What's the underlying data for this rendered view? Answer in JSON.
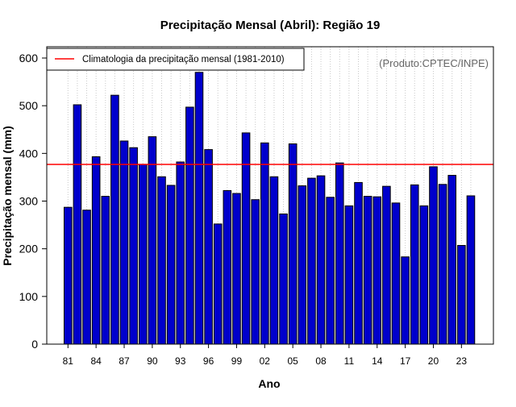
{
  "chart_data": {
    "type": "bar",
    "title": "Precipitação Mensal (Abril): Região 19",
    "xlabel": "Ano",
    "ylabel": "Precipitação mensal (mm)",
    "ylim": [
      0,
      600
    ],
    "yticks": [
      0,
      100,
      200,
      300,
      400,
      500,
      600
    ],
    "categories": [
      "1981",
      "1982",
      "1983",
      "1984",
      "1985",
      "1986",
      "1987",
      "1988",
      "1989",
      "1990",
      "1991",
      "1992",
      "1993",
      "1994",
      "1995",
      "1996",
      "1997",
      "1998",
      "1999",
      "2000",
      "2001",
      "2002",
      "2003",
      "2004",
      "2005",
      "2006",
      "2007",
      "2008",
      "2009",
      "2010",
      "2011",
      "2012",
      "2013",
      "2014",
      "2015",
      "2016",
      "2017",
      "2018",
      "2019",
      "2020",
      "2021",
      "2022",
      "2023",
      "2024"
    ],
    "xtick_labels": [
      "81",
      "84",
      "87",
      "90",
      "93",
      "96",
      "99",
      "02",
      "05",
      "08",
      "11",
      "14",
      "17",
      "20",
      "23"
    ],
    "values": [
      287,
      502,
      281,
      393,
      310,
      522,
      426,
      412,
      377,
      435,
      351,
      333,
      382,
      497,
      570,
      408,
      252,
      322,
      316,
      443,
      303,
      422,
      351,
      273,
      420,
      332,
      348,
      353,
      308,
      380,
      290,
      339,
      310,
      309,
      331,
      296,
      183,
      334,
      290,
      372,
      335,
      354,
      207,
      311
    ],
    "bar_color": "#0000cc",
    "reference_line": {
      "value": 377,
      "color": "#ff0000",
      "label": "Climatologia da precipitação mensal (1981-2010)"
    },
    "legend_position": "top-left",
    "grid": "vertical dotted",
    "source_note": "(Produto:CPTEC/INPE)"
  }
}
